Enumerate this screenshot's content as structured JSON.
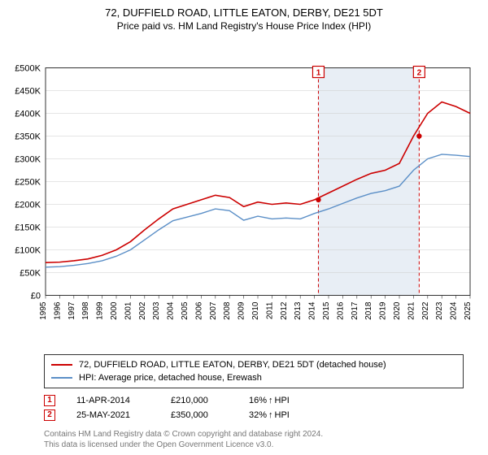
{
  "title": "72, DUFFIELD ROAD, LITTLE EATON, DERBY, DE21 5DT",
  "subtitle": "Price paid vs. HM Land Registry's House Price Index (HPI)",
  "chart": {
    "type": "line",
    "background_color": "#ffffff",
    "grid_color": "#cccccc",
    "axis_color": "#333333",
    "ylim": [
      0,
      500000
    ],
    "ytick_step": 50000,
    "ytick_labels": [
      "£0",
      "£50K",
      "£100K",
      "£150K",
      "£200K",
      "£250K",
      "£300K",
      "£350K",
      "£400K",
      "£450K",
      "£500K"
    ],
    "xlim": [
      1995,
      2025
    ],
    "xticks": [
      1995,
      1996,
      1997,
      1998,
      1999,
      2000,
      2001,
      2002,
      2003,
      2004,
      2005,
      2006,
      2007,
      2008,
      2009,
      2010,
      2011,
      2012,
      2013,
      2014,
      2015,
      2016,
      2017,
      2018,
      2019,
      2020,
      2021,
      2022,
      2023,
      2024,
      2025
    ],
    "series": [
      {
        "name": "property",
        "label": "72, DUFFIELD ROAD, LITTLE EATON, DERBY, DE21 5DT (detached house)",
        "color": "#cc0000",
        "line_width": 1.6,
        "data": [
          [
            1995,
            72000
          ],
          [
            1996,
            73000
          ],
          [
            1997,
            76000
          ],
          [
            1998,
            80000
          ],
          [
            1999,
            88000
          ],
          [
            2000,
            100000
          ],
          [
            2001,
            118000
          ],
          [
            2002,
            144000
          ],
          [
            2003,
            168000
          ],
          [
            2004,
            190000
          ],
          [
            2005,
            200000
          ],
          [
            2006,
            210000
          ],
          [
            2007,
            220000
          ],
          [
            2008,
            215000
          ],
          [
            2009,
            195000
          ],
          [
            2010,
            205000
          ],
          [
            2011,
            200000
          ],
          [
            2012,
            203000
          ],
          [
            2013,
            200000
          ],
          [
            2014,
            210000
          ],
          [
            2015,
            225000
          ],
          [
            2016,
            240000
          ],
          [
            2017,
            255000
          ],
          [
            2018,
            268000
          ],
          [
            2019,
            275000
          ],
          [
            2020,
            290000
          ],
          [
            2021,
            350000
          ],
          [
            2022,
            400000
          ],
          [
            2023,
            425000
          ],
          [
            2024,
            415000
          ],
          [
            2025,
            400000
          ]
        ]
      },
      {
        "name": "hpi",
        "label": "HPI: Average price, detached house, Erewash",
        "color": "#5b8fc7",
        "line_width": 1.4,
        "data": [
          [
            1995,
            62000
          ],
          [
            1996,
            63000
          ],
          [
            1997,
            66000
          ],
          [
            1998,
            70000
          ],
          [
            1999,
            76000
          ],
          [
            2000,
            86000
          ],
          [
            2001,
            100000
          ],
          [
            2002,
            122000
          ],
          [
            2003,
            144000
          ],
          [
            2004,
            164000
          ],
          [
            2005,
            172000
          ],
          [
            2006,
            180000
          ],
          [
            2007,
            190000
          ],
          [
            2008,
            186000
          ],
          [
            2009,
            165000
          ],
          [
            2010,
            174000
          ],
          [
            2011,
            168000
          ],
          [
            2012,
            170000
          ],
          [
            2013,
            168000
          ],
          [
            2014,
            180000
          ],
          [
            2015,
            190000
          ],
          [
            2016,
            202000
          ],
          [
            2017,
            214000
          ],
          [
            2018,
            224000
          ],
          [
            2019,
            230000
          ],
          [
            2020,
            240000
          ],
          [
            2021,
            275000
          ],
          [
            2022,
            300000
          ],
          [
            2023,
            310000
          ],
          [
            2024,
            308000
          ],
          [
            2025,
            305000
          ]
        ]
      }
    ],
    "sale_markers": [
      {
        "n": "1",
        "year": 2014.28,
        "price": 210000,
        "box_color": "#cc0000"
      },
      {
        "n": "2",
        "year": 2021.4,
        "price": 350000,
        "box_color": "#cc0000"
      }
    ],
    "shade_band": {
      "from_year": 2014.28,
      "to_year": 2021.4,
      "fill": "#e8eef5",
      "edge_color": "#cc0000",
      "edge_dash": "4,3"
    },
    "marker_dot_color": "#cc0000",
    "marker_dot_radius": 3.2
  },
  "legend": {
    "rows": [
      {
        "color": "#cc0000",
        "label": "72, DUFFIELD ROAD, LITTLE EATON, DERBY, DE21 5DT (detached house)"
      },
      {
        "color": "#5b8fc7",
        "label": "HPI: Average price, detached house, Erewash"
      }
    ]
  },
  "marker_table": [
    {
      "n": "1",
      "box_color": "#cc0000",
      "date": "11-APR-2014",
      "price": "£210,000",
      "hpi_pct": "16%",
      "hpi_dir": "↑",
      "hpi_label": "HPI"
    },
    {
      "n": "2",
      "box_color": "#cc0000",
      "date": "25-MAY-2021",
      "price": "£350,000",
      "hpi_pct": "32%",
      "hpi_dir": "↑",
      "hpi_label": "HPI"
    }
  ],
  "footer": {
    "line1": "Contains HM Land Registry data © Crown copyright and database right 2024.",
    "line2": "This data is licensed under the Open Government Licence v3.0."
  }
}
